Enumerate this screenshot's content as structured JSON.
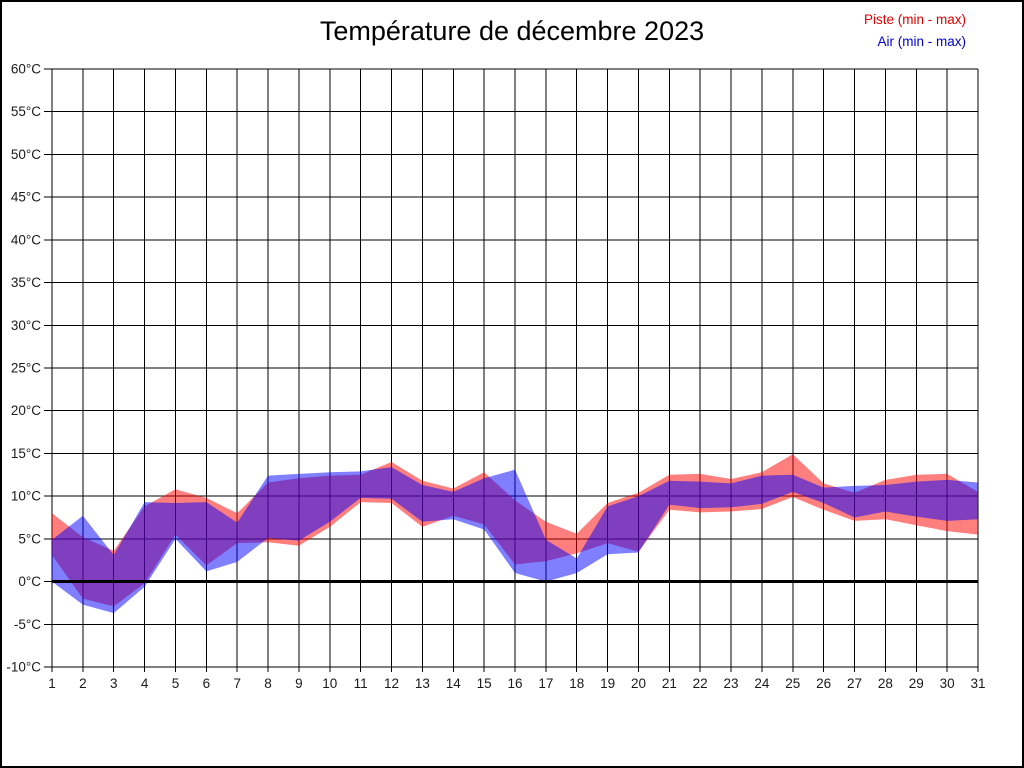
{
  "title": "Température de décembre 2023",
  "legend": [
    {
      "label": "Piste (min - max)",
      "color": "#dd0000"
    },
    {
      "label": "Air (min - max)",
      "color": "#0000cc"
    }
  ],
  "chart_data": {
    "type": "area",
    "subtype": "min-max-bands",
    "title": "Température de décembre 2023",
    "xlabel": "",
    "ylabel": "",
    "x": [
      1,
      2,
      3,
      4,
      5,
      6,
      7,
      8,
      9,
      10,
      11,
      12,
      13,
      14,
      15,
      16,
      17,
      18,
      19,
      20,
      21,
      22,
      23,
      24,
      25,
      26,
      27,
      28,
      29,
      30,
      31
    ],
    "xtick_labels": [
      "1",
      "2",
      "3",
      "4",
      "5",
      "6",
      "7",
      "8",
      "9",
      "10",
      "11",
      "12",
      "13",
      "14",
      "15",
      "16",
      "17",
      "18",
      "19",
      "20",
      "21",
      "22",
      "23",
      "24",
      "25",
      "26",
      "27",
      "28",
      "29",
      "30",
      "31"
    ],
    "ylim": [
      -10,
      60
    ],
    "ytick_step": 5,
    "ytick_suffix": "°C",
    "grid": true,
    "zero_line": true,
    "legend_position": "top-right",
    "series": [
      {
        "name": "Piste (min - max)",
        "fill": "rgba(255,0,0,0.5)",
        "min": [
          3.1,
          -2.0,
          -2.9,
          -0.2,
          5.5,
          1.9,
          4.5,
          4.6,
          4.2,
          6.4,
          9.3,
          9.2,
          6.4,
          7.7,
          6.7,
          2.0,
          2.4,
          3.3,
          4.5,
          3.5,
          8.4,
          8.1,
          8.2,
          8.5,
          9.9,
          8.4,
          7.1,
          7.3,
          6.6,
          5.9,
          5.5
        ],
        "max": [
          8.0,
          5.2,
          3.6,
          8.8,
          10.8,
          9.8,
          8.0,
          11.6,
          12.1,
          12.4,
          12.5,
          14.0,
          11.8,
          10.9,
          12.8,
          9.5,
          7.0,
          5.6,
          9.2,
          10.4,
          12.5,
          12.6,
          12.0,
          12.8,
          14.9,
          11.5,
          10.4,
          11.9,
          12.5,
          12.6,
          10.5
        ]
      },
      {
        "name": "Air (min - max)",
        "fill": "rgba(0,0,255,0.5)",
        "min": [
          0.0,
          -2.7,
          -3.7,
          -0.6,
          5.0,
          1.2,
          2.3,
          5.1,
          4.8,
          7.0,
          9.8,
          9.7,
          7.0,
          7.3,
          6.1,
          1.0,
          0.0,
          1.0,
          3.2,
          3.4,
          9.0,
          8.6,
          8.7,
          9.1,
          10.5,
          9.2,
          7.5,
          8.2,
          7.6,
          7.1,
          7.3
        ],
        "max": [
          4.9,
          7.7,
          3.1,
          9.3,
          9.2,
          9.3,
          6.9,
          12.4,
          12.6,
          12.8,
          12.9,
          13.4,
          11.3,
          10.5,
          12.1,
          13.1,
          4.9,
          2.7,
          8.8,
          10.0,
          11.8,
          11.7,
          11.5,
          12.4,
          12.5,
          11.0,
          11.2,
          11.3,
          11.7,
          11.9,
          11.6
        ]
      }
    ],
    "axis_text_color": "#1a1a1a",
    "grid_color": "#000000"
  }
}
